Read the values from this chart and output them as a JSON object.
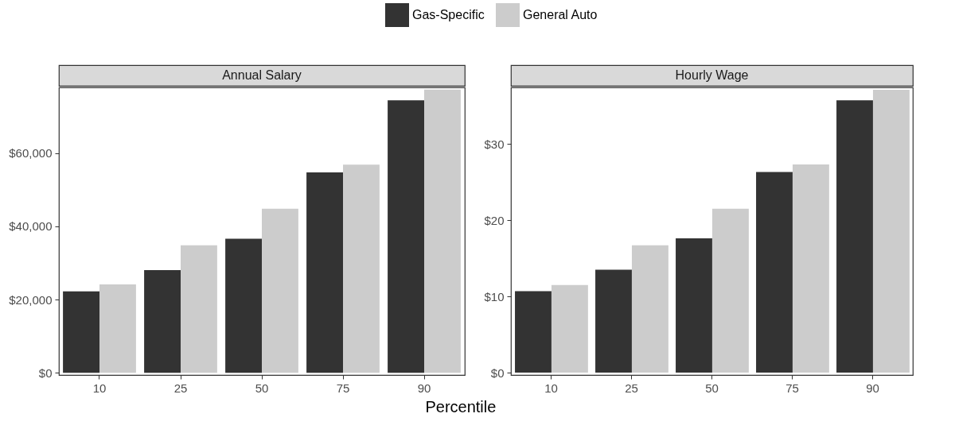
{
  "chart_data": [
    {
      "type": "bar",
      "title": "Annual Salary",
      "xlabel": "Percentile",
      "categories": [
        "10",
        "25",
        "50",
        "75",
        "90"
      ],
      "series": [
        {
          "name": "Gas-Specific",
          "color": "#333333",
          "values": [
            22200,
            28000,
            36600,
            54700,
            74400
          ]
        },
        {
          "name": "General Auto",
          "color": "#cccccc",
          "values": [
            24100,
            34800,
            44800,
            56800,
            77300
          ]
        }
      ],
      "ylim": [
        -600,
        77900
      ],
      "yticks": [
        {
          "value": 0,
          "label": "$0"
        },
        {
          "value": 20000,
          "label": "$20,000"
        },
        {
          "value": 40000,
          "label": "$40,000"
        },
        {
          "value": 60000,
          "label": "$60,000"
        }
      ],
      "grid": false,
      "legend": "top"
    },
    {
      "type": "bar",
      "title": "Hourly Wage",
      "categories": [
        "10",
        "25",
        "50",
        "75",
        "90"
      ],
      "series": [
        {
          "name": "Gas-Specific",
          "color": "#333333",
          "values": [
            10.7,
            13.5,
            17.6,
            26.3,
            35.7
          ]
        },
        {
          "name": "General Auto",
          "color": "#cccccc",
          "values": [
            11.5,
            16.7,
            21.5,
            27.3,
            37.1
          ]
        }
      ],
      "ylim": [
        -0.3,
        37.4
      ],
      "yticks": [
        {
          "value": 0,
          "label": "$0"
        },
        {
          "value": 10,
          "label": "$10"
        },
        {
          "value": 20,
          "label": "$20"
        },
        {
          "value": 30,
          "label": "$30"
        }
      ],
      "grid": false,
      "legend": "top"
    }
  ]
}
